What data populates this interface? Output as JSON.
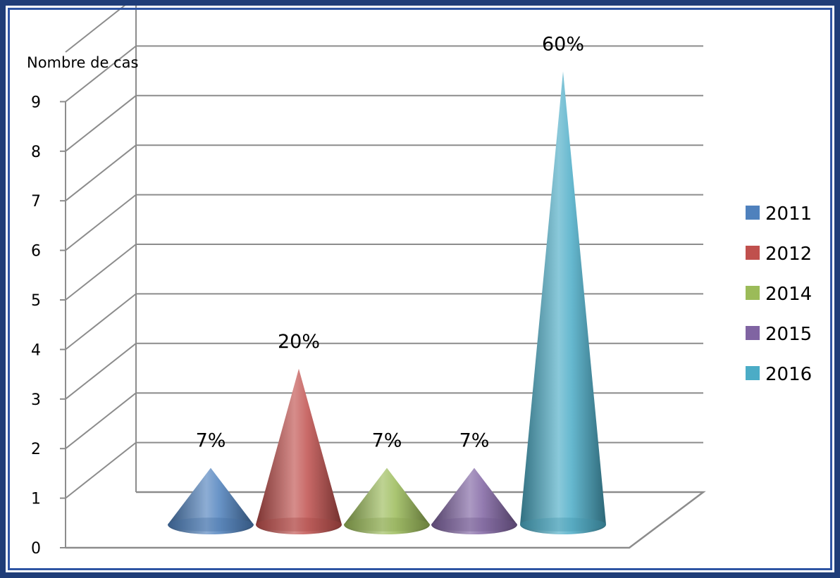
{
  "chart_data": {
    "type": "bar",
    "style": "3d-cone",
    "ylabel": "Nombre de cas",
    "ylim": [
      0,
      9
    ],
    "yticks": [
      0,
      1,
      2,
      3,
      4,
      5,
      6,
      7,
      8,
      9
    ],
    "grid": true,
    "legend": "right",
    "series": [
      {
        "name": "2011",
        "value": 1,
        "label": "7%",
        "color": "#4f81bd"
      },
      {
        "name": "2012",
        "value": 3,
        "label": "20%",
        "color": "#c0504d"
      },
      {
        "name": "2014",
        "value": 1,
        "label": "7%",
        "color": "#9bbb59"
      },
      {
        "name": "2015",
        "value": 1,
        "label": "7%",
        "color": "#8064a2"
      },
      {
        "name": "2016",
        "value": 9,
        "label": "60%",
        "color": "#4bacc6"
      }
    ]
  }
}
